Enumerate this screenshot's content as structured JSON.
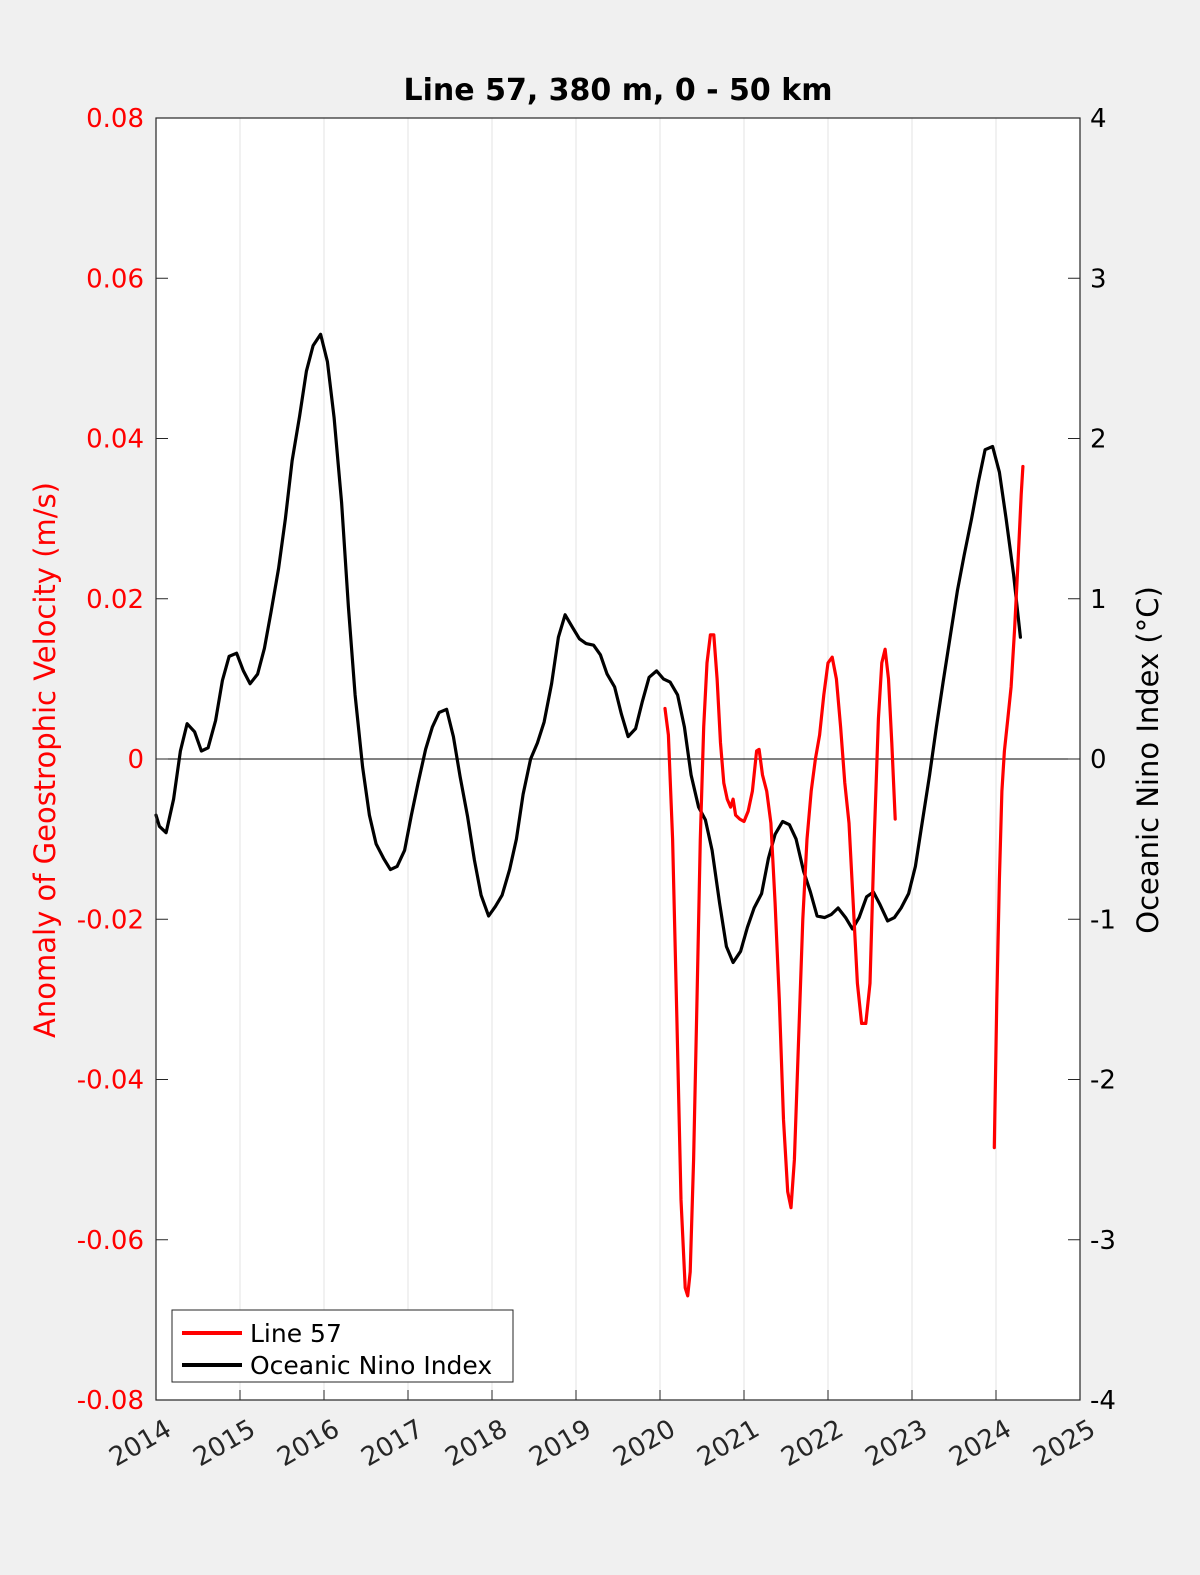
{
  "chart_data": {
    "type": "line",
    "title": "Line 57, 380 m, 0 - 50 km",
    "ylabel_left": "Anomaly of Geostrophic Velocity (m/s)",
    "ylabel_right": "Oceanic Nino Index (°C)",
    "xlim": [
      2014,
      2025
    ],
    "ylim_left": [
      -0.08,
      0.08
    ],
    "ylim_right": [
      -4,
      4
    ],
    "xticks": [
      "2014",
      "2015",
      "2016",
      "2017",
      "2018",
      "2019",
      "2020",
      "2021",
      "2022",
      "2023",
      "2024",
      "2025"
    ],
    "yticks_left": [
      "0.08",
      "0.06",
      "0.04",
      "0.02",
      "0",
      "-0.02",
      "-0.04",
      "-0.06",
      "-0.08"
    ],
    "yticks_right": [
      "4",
      "3",
      "2",
      "1",
      "0",
      "-1",
      "-2",
      "-3",
      "-4"
    ],
    "x_grid": true,
    "zero_line": true,
    "legend": {
      "position": "bottom-left",
      "entries": [
        "Line 57",
        "Oceanic Nino Index"
      ]
    },
    "colors": {
      "line57": "#ff0000",
      "oni": "#000000",
      "left_axis": "#ff0000",
      "right_axis": "#000000"
    },
    "series": [
      {
        "name": "Line 57",
        "axis": "left",
        "segments": [
          [
            [
              2020.06,
              0.0063
            ],
            [
              2020.1,
              0.003
            ],
            [
              2020.15,
              -0.01
            ],
            [
              2020.2,
              -0.032
            ],
            [
              2020.25,
              -0.055
            ],
            [
              2020.3,
              -0.066
            ],
            [
              2020.33,
              -0.067
            ],
            [
              2020.36,
              -0.064
            ],
            [
              2020.4,
              -0.05
            ],
            [
              2020.44,
              -0.03
            ],
            [
              2020.48,
              -0.01
            ],
            [
              2020.52,
              0.004
            ],
            [
              2020.56,
              0.012
            ],
            [
              2020.6,
              0.0155
            ],
            [
              2020.64,
              0.0155
            ],
            [
              2020.68,
              0.01
            ],
            [
              2020.72,
              0.002
            ],
            [
              2020.76,
              -0.003
            ],
            [
              2020.8,
              -0.005
            ],
            [
              2020.84,
              -0.006
            ],
            [
              2020.87,
              -0.005
            ],
            [
              2020.9,
              -0.007
            ],
            [
              2020.95,
              -0.0075
            ],
            [
              2021.0,
              -0.0078
            ],
            [
              2021.05,
              -0.0065
            ],
            [
              2021.1,
              -0.004
            ],
            [
              2021.15,
              0.001
            ],
            [
              2021.18,
              0.0012
            ],
            [
              2021.22,
              -0.002
            ],
            [
              2021.27,
              -0.004
            ],
            [
              2021.32,
              -0.008
            ],
            [
              2021.37,
              -0.018
            ],
            [
              2021.42,
              -0.03
            ],
            [
              2021.47,
              -0.045
            ],
            [
              2021.52,
              -0.054
            ],
            [
              2021.56,
              -0.056
            ],
            [
              2021.6,
              -0.05
            ],
            [
              2021.65,
              -0.035
            ],
            [
              2021.7,
              -0.02
            ],
            [
              2021.75,
              -0.01
            ],
            [
              2021.8,
              -0.004
            ],
            [
              2021.85,
              0.0
            ],
            [
              2021.9,
              0.003
            ],
            [
              2021.95,
              0.008
            ],
            [
              2022.0,
              0.012
            ],
            [
              2022.05,
              0.0127
            ],
            [
              2022.1,
              0.01
            ],
            [
              2022.15,
              0.004
            ],
            [
              2022.2,
              -0.003
            ],
            [
              2022.25,
              -0.008
            ],
            [
              2022.3,
              -0.018
            ],
            [
              2022.35,
              -0.028
            ],
            [
              2022.4,
              -0.033
            ],
            [
              2022.45,
              -0.033
            ],
            [
              2022.5,
              -0.028
            ],
            [
              2022.55,
              -0.01
            ],
            [
              2022.6,
              0.005
            ],
            [
              2022.64,
              0.012
            ],
            [
              2022.68,
              0.0137
            ],
            [
              2022.72,
              0.01
            ],
            [
              2022.76,
              0.002
            ],
            [
              2022.8,
              -0.0075
            ]
          ],
          [
            [
              2023.98,
              -0.0485
            ],
            [
              2024.01,
              -0.03
            ],
            [
              2024.04,
              -0.015
            ],
            [
              2024.07,
              -0.004
            ],
            [
              2024.1,
              0.001
            ],
            [
              2024.14,
              0.005
            ],
            [
              2024.18,
              0.009
            ],
            [
              2024.22,
              0.016
            ],
            [
              2024.26,
              0.024
            ],
            [
              2024.3,
              0.033
            ],
            [
              2024.32,
              0.0365
            ]
          ]
        ]
      },
      {
        "name": "Oceanic Nino Index",
        "axis": "right",
        "segments": [
          [
            [
              2014.0,
              -0.35
            ],
            [
              2014.04,
              -0.42
            ],
            [
              2014.12,
              -0.46
            ],
            [
              2014.21,
              -0.25
            ],
            [
              2014.29,
              0.05
            ],
            [
              2014.37,
              0.22
            ],
            [
              2014.46,
              0.17
            ],
            [
              2014.54,
              0.05
            ],
            [
              2014.62,
              0.07
            ],
            [
              2014.71,
              0.24
            ],
            [
              2014.79,
              0.49
            ],
            [
              2014.87,
              0.64
            ],
            [
              2014.96,
              0.66
            ],
            [
              2015.04,
              0.55
            ],
            [
              2015.12,
              0.47
            ],
            [
              2015.21,
              0.53
            ],
            [
              2015.29,
              0.69
            ],
            [
              2015.37,
              0.92
            ],
            [
              2015.46,
              1.19
            ],
            [
              2015.54,
              1.5
            ],
            [
              2015.62,
              1.86
            ],
            [
              2015.71,
              2.14
            ],
            [
              2015.79,
              2.42
            ],
            [
              2015.87,
              2.58
            ],
            [
              2015.96,
              2.65
            ],
            [
              2016.04,
              2.48
            ],
            [
              2016.12,
              2.13
            ],
            [
              2016.21,
              1.6
            ],
            [
              2016.29,
              0.95
            ],
            [
              2016.37,
              0.4
            ],
            [
              2016.46,
              -0.05
            ],
            [
              2016.54,
              -0.35
            ],
            [
              2016.62,
              -0.53
            ],
            [
              2016.71,
              -0.62
            ],
            [
              2016.79,
              -0.69
            ],
            [
              2016.87,
              -0.67
            ],
            [
              2016.96,
              -0.57
            ],
            [
              2017.04,
              -0.35
            ],
            [
              2017.12,
              -0.15
            ],
            [
              2017.21,
              0.06
            ],
            [
              2017.29,
              0.2
            ],
            [
              2017.37,
              0.29
            ],
            [
              2017.46,
              0.31
            ],
            [
              2017.54,
              0.14
            ],
            [
              2017.62,
              -0.11
            ],
            [
              2017.71,
              -0.36
            ],
            [
              2017.79,
              -0.63
            ],
            [
              2017.87,
              -0.85
            ],
            [
              2017.96,
              -0.98
            ],
            [
              2018.04,
              -0.92
            ],
            [
              2018.12,
              -0.85
            ],
            [
              2018.21,
              -0.69
            ],
            [
              2018.29,
              -0.5
            ],
            [
              2018.37,
              -0.22
            ],
            [
              2018.46,
              0.0
            ],
            [
              2018.54,
              0.1
            ],
            [
              2018.62,
              0.23
            ],
            [
              2018.71,
              0.47
            ],
            [
              2018.79,
              0.76
            ],
            [
              2018.87,
              0.9
            ],
            [
              2018.96,
              0.82
            ],
            [
              2019.04,
              0.75
            ],
            [
              2019.12,
              0.72
            ],
            [
              2019.21,
              0.71
            ],
            [
              2019.29,
              0.65
            ],
            [
              2019.37,
              0.53
            ],
            [
              2019.46,
              0.45
            ],
            [
              2019.54,
              0.28
            ],
            [
              2019.62,
              0.14
            ],
            [
              2019.71,
              0.19
            ],
            [
              2019.79,
              0.36
            ],
            [
              2019.87,
              0.51
            ],
            [
              2019.96,
              0.55
            ],
            [
              2020.04,
              0.5
            ],
            [
              2020.12,
              0.48
            ],
            [
              2020.21,
              0.4
            ],
            [
              2020.29,
              0.2
            ],
            [
              2020.37,
              -0.1
            ],
            [
              2020.46,
              -0.3
            ],
            [
              2020.54,
              -0.38
            ],
            [
              2020.62,
              -0.57
            ],
            [
              2020.71,
              -0.9
            ],
            [
              2020.79,
              -1.17
            ],
            [
              2020.87,
              -1.27
            ],
            [
              2020.96,
              -1.2
            ],
            [
              2021.04,
              -1.05
            ],
            [
              2021.12,
              -0.93
            ],
            [
              2021.21,
              -0.84
            ],
            [
              2021.29,
              -0.62
            ],
            [
              2021.37,
              -0.47
            ],
            [
              2021.46,
              -0.39
            ],
            [
              2021.54,
              -0.41
            ],
            [
              2021.62,
              -0.5
            ],
            [
              2021.71,
              -0.7
            ],
            [
              2021.79,
              -0.83
            ],
            [
              2021.87,
              -0.98
            ],
            [
              2021.96,
              -0.99
            ],
            [
              2022.04,
              -0.97
            ],
            [
              2022.12,
              -0.93
            ],
            [
              2022.21,
              -0.99
            ],
            [
              2022.29,
              -1.06
            ],
            [
              2022.37,
              -0.99
            ],
            [
              2022.46,
              -0.86
            ],
            [
              2022.54,
              -0.83
            ],
            [
              2022.62,
              -0.91
            ],
            [
              2022.71,
              -1.01
            ],
            [
              2022.79,
              -0.99
            ],
            [
              2022.87,
              -0.93
            ],
            [
              2022.96,
              -0.84
            ],
            [
              2023.04,
              -0.67
            ],
            [
              2023.12,
              -0.4
            ],
            [
              2023.21,
              -0.1
            ],
            [
              2023.29,
              0.2
            ],
            [
              2023.37,
              0.48
            ],
            [
              2023.46,
              0.78
            ],
            [
              2023.54,
              1.05
            ],
            [
              2023.62,
              1.27
            ],
            [
              2023.71,
              1.5
            ],
            [
              2023.79,
              1.73
            ],
            [
              2023.87,
              1.93
            ],
            [
              2023.96,
              1.95
            ],
            [
              2024.04,
              1.79
            ],
            [
              2024.12,
              1.5
            ],
            [
              2024.21,
              1.15
            ],
            [
              2024.29,
              0.76
            ]
          ]
        ]
      }
    ]
  }
}
